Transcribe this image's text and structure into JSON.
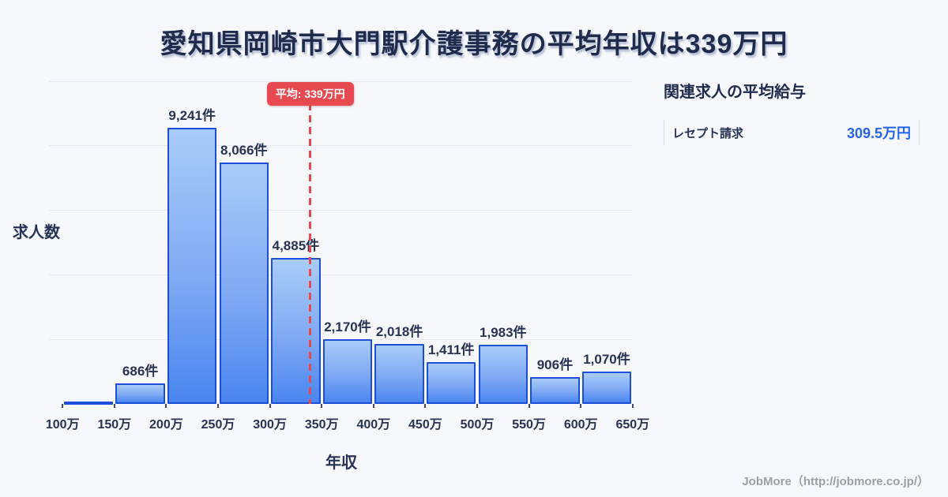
{
  "title": "愛知県岡崎市大門駅介護事務の平均年収は339万円",
  "chart_data": {
    "type": "bar",
    "title": "愛知県岡崎市大門駅介護事務の平均年収は339万円",
    "xlabel": "年収",
    "ylabel": "求人数",
    "x_tick_labels": [
      "100万",
      "150万",
      "200万",
      "250万",
      "300万",
      "350万",
      "400万",
      "450万",
      "500万",
      "550万",
      "600万",
      "650万"
    ],
    "bin_ranges": [
      "100万-150万",
      "150万-200万",
      "200万-250万",
      "250万-300万",
      "300万-350万",
      "350万-400万",
      "400万-450万",
      "450万-500万",
      "500万-550万",
      "550万-600万",
      "600万-650万"
    ],
    "values": [
      80,
      686,
      9241,
      8066,
      4885,
      2170,
      2018,
      1411,
      1983,
      906,
      1070
    ],
    "bar_labels": [
      "",
      "686件",
      "9,241件",
      "8,066件",
      "4,885件",
      "2,170件",
      "2,018件",
      "1,411件",
      "1,983件",
      "906件",
      "1,070件"
    ],
    "average_line": {
      "label": "平均: 339万円",
      "value_man_yen": 339
    },
    "ylim": [
      0,
      10800
    ],
    "y_tick_labels_shown": false,
    "gridlines": "horizontal",
    "legend": "none"
  },
  "related_panel": {
    "heading": "関連求人の平均給与",
    "rows": [
      {
        "label": "レセプト請求",
        "value": "309.5万円"
      }
    ]
  },
  "footer": {
    "credit": "JobMore（http://jobmore.co.jp/）"
  },
  "colors": {
    "background": "#f7f8fb",
    "navy_text": "#273354",
    "title_navy": "#1f2b4d",
    "bar_gradient_top": "#a9ccf8",
    "bar_gradient_bottom": "#4a86f0",
    "bar_border": "#1d4ed8",
    "gridline": "#e6e9f0",
    "average_red": "#e8484f",
    "value_blue": "#2563eb",
    "footer_gray": "#9aa0a8",
    "panel_border": "#d8dce3"
  }
}
